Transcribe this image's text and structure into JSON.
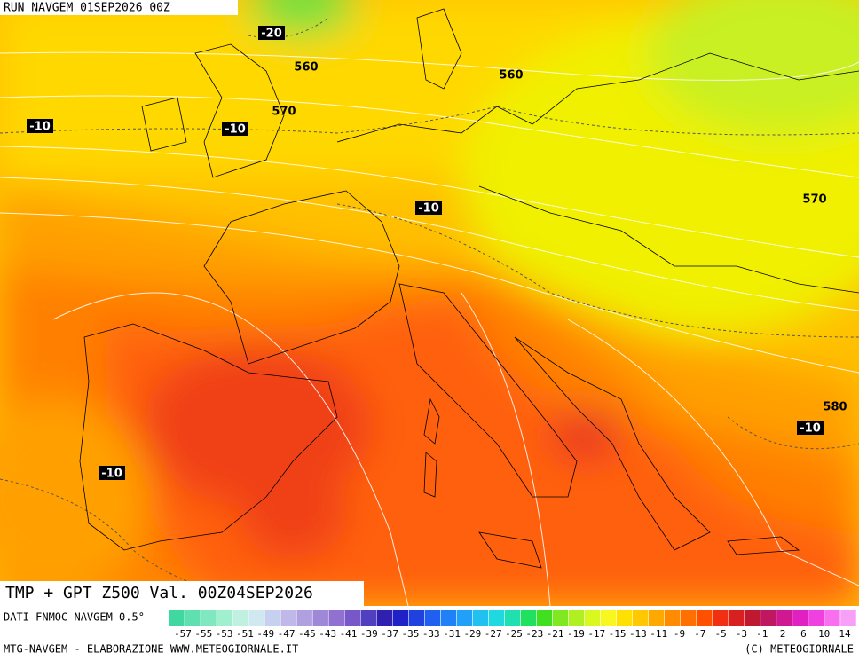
{
  "header": {
    "run": "RUN NAVGEM 01SEP2026 00Z"
  },
  "map": {
    "temperature_labels": [
      -20,
      -10,
      -10,
      -10,
      -10,
      -10
    ],
    "height_labels": [
      560,
      560,
      570,
      570,
      580
    ]
  },
  "footer": {
    "product": "TMP + GPT Z500 Val. 00Z04SEP2026",
    "source_label": "DATI FNMOC NAVGEM 0.5°",
    "credit_left": "MTG-NAVGEM - ELABORAZIONE WWW.METEOGIORNALE.IT",
    "credit_right": "(C) METEOGIORNALE"
  },
  "colorbar": {
    "labels": [
      -57,
      -55,
      -53,
      -51,
      -49,
      -47,
      -45,
      -43,
      -41,
      -39,
      -37,
      -35,
      -33,
      -31,
      -29,
      -27,
      -25,
      -23,
      -21,
      -19,
      -17,
      -15,
      -13,
      -11,
      -9,
      -7,
      -5,
      -3,
      -1,
      2,
      6,
      10,
      14
    ],
    "colors": [
      "#40d8a0",
      "#60e0b0",
      "#80e8c0",
      "#a0f0d0",
      "#c0f0e0",
      "#d0e8f0",
      "#c8d0f0",
      "#c0b8e8",
      "#b0a0e0",
      "#a088d8",
      "#9070d0",
      "#7858c8",
      "#5040c0",
      "#3020b0",
      "#2020c8",
      "#2040e0",
      "#2060f0",
      "#2080f8",
      "#20a0f8",
      "#20c0f0",
      "#20d8e0",
      "#20e0b0",
      "#20e060",
      "#40e020",
      "#80e820",
      "#b0f020",
      "#d8f820",
      "#f8f820",
      "#ffe000",
      "#ffc800",
      "#ffa800",
      "#ff8c00",
      "#ff7000",
      "#ff5000",
      "#f03010",
      "#d82020",
      "#c01830",
      "#c01860",
      "#d01890",
      "#e020c0",
      "#f040e0",
      "#f870f0",
      "#f8a0f8"
    ]
  }
}
